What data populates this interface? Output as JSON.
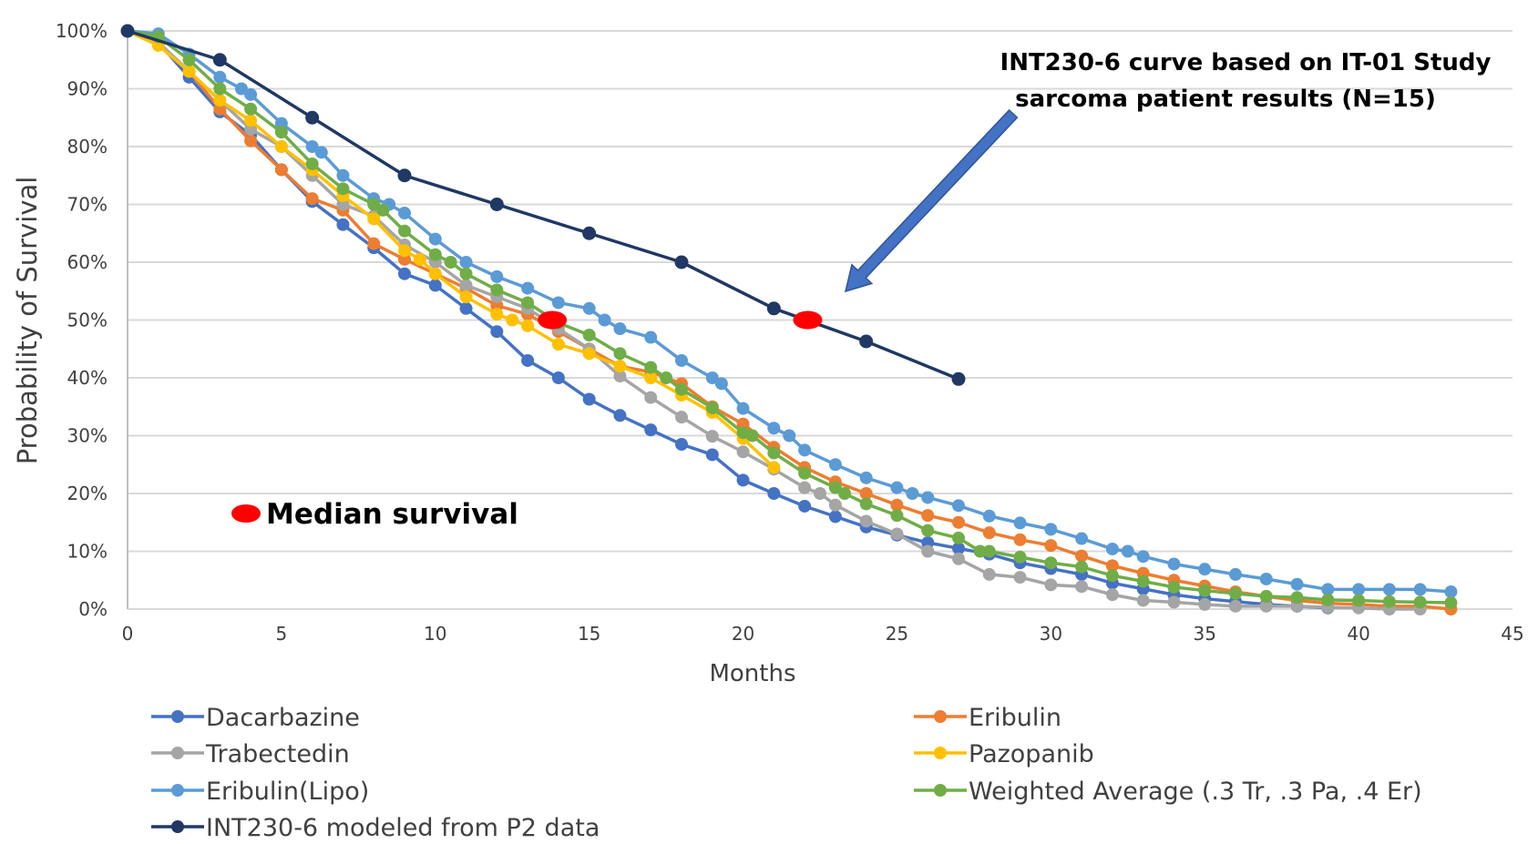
{
  "chart_data": {
    "type": "line",
    "title": "",
    "xlabel": "Months",
    "ylabel": "Probability of Survival",
    "xlim": [
      0,
      45
    ],
    "ylim": [
      0,
      100
    ],
    "x_ticks": [
      0,
      5,
      10,
      15,
      20,
      25,
      30,
      35,
      40,
      45
    ],
    "y_ticks": [
      "0%",
      "10%",
      "20%",
      "30%",
      "40%",
      "50%",
      "60%",
      "70%",
      "80%",
      "90%",
      "100%"
    ],
    "grid": "horizontal",
    "legend_placement": "bottom",
    "series": [
      {
        "name": "Dacarbazine",
        "color": "#4472C4",
        "points": [
          [
            0,
            100
          ],
          [
            1,
            98
          ],
          [
            2,
            92
          ],
          [
            3,
            86
          ],
          [
            4,
            82
          ],
          [
            5,
            76
          ],
          [
            6,
            70.5
          ],
          [
            7,
            66.5
          ],
          [
            8,
            62.5
          ],
          [
            9,
            58
          ],
          [
            10,
            56
          ],
          [
            11,
            52
          ],
          [
            12,
            48
          ],
          [
            13,
            43
          ],
          [
            14,
            40
          ],
          [
            15,
            36.3
          ],
          [
            16,
            33.5
          ],
          [
            17,
            31
          ],
          [
            18,
            28.5
          ],
          [
            19,
            26.7
          ],
          [
            20,
            22.3
          ],
          [
            21,
            20
          ],
          [
            22,
            17.8
          ],
          [
            23,
            16
          ],
          [
            24,
            14.2
          ],
          [
            25,
            12.8
          ],
          [
            26,
            11.5
          ],
          [
            27,
            10.5
          ],
          [
            28,
            9.5
          ],
          [
            29,
            8
          ],
          [
            30,
            7
          ],
          [
            31,
            6
          ],
          [
            32,
            4.5
          ],
          [
            33,
            3.5
          ],
          [
            34,
            2.5
          ],
          [
            35,
            1.8
          ],
          [
            36,
            1.3
          ],
          [
            37,
            0.8
          ],
          [
            38,
            0.5
          ],
          [
            39,
            0.2
          ]
        ]
      },
      {
        "name": "Eribulin",
        "color": "#ED7D31",
        "points": [
          [
            0,
            100
          ],
          [
            1,
            98
          ],
          [
            2,
            93
          ],
          [
            3,
            86.5
          ],
          [
            4,
            81
          ],
          [
            5,
            76
          ],
          [
            6,
            71
          ],
          [
            7,
            69
          ],
          [
            8,
            63.2
          ],
          [
            9,
            60.5
          ],
          [
            10,
            58
          ],
          [
            11,
            55.5
          ],
          [
            12,
            52.5
          ],
          [
            13,
            51
          ],
          [
            14,
            48
          ],
          [
            15,
            45
          ],
          [
            16,
            42
          ],
          [
            17,
            41
          ],
          [
            18,
            39
          ],
          [
            19,
            35
          ],
          [
            20,
            32
          ],
          [
            21,
            28
          ],
          [
            22,
            24.5
          ],
          [
            23,
            22
          ],
          [
            24,
            20
          ],
          [
            25,
            18
          ],
          [
            26,
            16.2
          ],
          [
            27,
            15
          ],
          [
            28,
            13.2
          ],
          [
            29,
            12
          ],
          [
            30,
            11
          ],
          [
            31,
            9.2
          ],
          [
            32,
            7.5
          ],
          [
            33,
            6.2
          ],
          [
            34,
            5
          ],
          [
            35,
            4
          ],
          [
            36,
            3
          ],
          [
            37,
            2.2
          ],
          [
            38,
            1.5
          ],
          [
            39,
            1
          ],
          [
            40,
            0.8
          ],
          [
            41,
            0.5
          ],
          [
            42,
            0.5
          ],
          [
            43,
            0
          ]
        ]
      },
      {
        "name": "Trabectedin",
        "color": "#A5A5A5",
        "points": [
          [
            0,
            100
          ],
          [
            1,
            98
          ],
          [
            2,
            93
          ],
          [
            3,
            88
          ],
          [
            4,
            83
          ],
          [
            5,
            80
          ],
          [
            6,
            75
          ],
          [
            7,
            70
          ],
          [
            8,
            68
          ],
          [
            9,
            63
          ],
          [
            10,
            60
          ],
          [
            11,
            56
          ],
          [
            12,
            54
          ],
          [
            13,
            52
          ],
          [
            14,
            48.5
          ],
          [
            15,
            45
          ],
          [
            16,
            40.3
          ],
          [
            17,
            36.6
          ],
          [
            18,
            33.2
          ],
          [
            19,
            29.9
          ],
          [
            20,
            27.2
          ],
          [
            21,
            24.2
          ],
          [
            22,
            21
          ],
          [
            22.5,
            20
          ],
          [
            23,
            18
          ],
          [
            24,
            15.2
          ],
          [
            25,
            13
          ],
          [
            26,
            10
          ],
          [
            27,
            8.7
          ],
          [
            28,
            6
          ],
          [
            29,
            5.5
          ],
          [
            30,
            4.2
          ],
          [
            31,
            3.9
          ],
          [
            32,
            2.5
          ],
          [
            33,
            1.5
          ],
          [
            34,
            1.2
          ],
          [
            35,
            0.8
          ],
          [
            36,
            0.5
          ],
          [
            37,
            0.5
          ],
          [
            38,
            0.5
          ],
          [
            39,
            0.3
          ],
          [
            40,
            0.2
          ],
          [
            41,
            0
          ],
          [
            42,
            0
          ]
        ]
      },
      {
        "name": "Pazopanib",
        "color": "#FFC000",
        "points": [
          [
            0,
            100
          ],
          [
            1,
            97.5
          ],
          [
            2,
            93
          ],
          [
            3,
            88
          ],
          [
            4,
            84.5
          ],
          [
            5,
            80
          ],
          [
            6,
            76
          ],
          [
            7,
            71.5
          ],
          [
            8,
            67.5
          ],
          [
            9,
            62
          ],
          [
            9.5,
            60.5
          ],
          [
            10,
            58
          ],
          [
            11,
            54
          ],
          [
            12,
            51
          ],
          [
            12.5,
            50
          ],
          [
            13,
            49
          ],
          [
            14,
            45.8
          ],
          [
            15,
            44.2
          ],
          [
            16,
            42
          ],
          [
            17,
            40
          ],
          [
            18,
            37
          ],
          [
            19,
            34
          ],
          [
            20,
            29.5
          ],
          [
            21,
            24.5
          ]
        ]
      },
      {
        "name": "Eribulin(Lipo)",
        "color": "#5B9BD5",
        "points": [
          [
            0,
            100
          ],
          [
            1,
            99.5
          ],
          [
            2,
            96
          ],
          [
            3,
            92
          ],
          [
            3.7,
            90
          ],
          [
            4,
            89
          ],
          [
            5,
            84
          ],
          [
            6,
            80
          ],
          [
            6.3,
            79
          ],
          [
            7,
            75
          ],
          [
            8,
            71
          ],
          [
            8.5,
            70
          ],
          [
            9,
            68.5
          ],
          [
            10,
            64
          ],
          [
            11,
            60
          ],
          [
            12,
            57.5
          ],
          [
            13,
            55.5
          ],
          [
            14,
            53
          ],
          [
            15,
            52
          ],
          [
            15.5,
            50
          ],
          [
            16,
            48.5
          ],
          [
            17,
            47
          ],
          [
            18,
            43
          ],
          [
            19,
            40
          ],
          [
            19.3,
            39
          ],
          [
            20,
            34.7
          ],
          [
            21,
            31.3
          ],
          [
            21.5,
            30
          ],
          [
            22,
            27.5
          ],
          [
            23,
            25
          ],
          [
            24,
            22.7
          ],
          [
            25,
            21
          ],
          [
            25.5,
            20
          ],
          [
            26,
            19.3
          ],
          [
            27,
            17.9
          ],
          [
            28,
            16.1
          ],
          [
            29,
            14.9
          ],
          [
            30,
            13.8
          ],
          [
            31,
            12.2
          ],
          [
            32,
            10.4
          ],
          [
            32.5,
            10
          ],
          [
            33,
            9.1
          ],
          [
            34,
            7.8
          ],
          [
            35,
            6.9
          ],
          [
            36,
            6
          ],
          [
            37,
            5.2
          ],
          [
            38,
            4.3
          ],
          [
            39,
            3.4
          ],
          [
            40,
            3.4
          ],
          [
            41,
            3.4
          ],
          [
            42,
            3.4
          ],
          [
            43,
            3
          ]
        ]
      },
      {
        "name": "Weighted Average (.3 Tr, .3 Pa, .4 Er)",
        "color": "#70AD47",
        "points": [
          [
            0,
            100
          ],
          [
            1,
            99
          ],
          [
            2,
            95
          ],
          [
            3,
            90
          ],
          [
            4,
            86.5
          ],
          [
            5,
            82.5
          ],
          [
            6,
            77
          ],
          [
            7,
            72.7
          ],
          [
            8,
            70
          ],
          [
            8.3,
            69
          ],
          [
            9,
            65.4
          ],
          [
            10,
            61.3
          ],
          [
            10.5,
            60
          ],
          [
            11,
            58
          ],
          [
            12,
            55.2
          ],
          [
            13,
            53
          ],
          [
            14,
            49.5
          ],
          [
            15,
            47.4
          ],
          [
            16,
            44.2
          ],
          [
            17,
            41.8
          ],
          [
            17.5,
            40
          ],
          [
            18,
            38
          ],
          [
            19,
            34.8
          ],
          [
            20,
            30.5
          ],
          [
            20.3,
            30
          ],
          [
            21,
            27
          ],
          [
            22,
            23.5
          ],
          [
            23,
            21
          ],
          [
            23.3,
            20
          ],
          [
            24,
            18.2
          ],
          [
            25,
            16.2
          ],
          [
            26,
            13.6
          ],
          [
            27,
            12.3
          ],
          [
            27.7,
            10
          ],
          [
            28,
            10
          ],
          [
            29,
            9
          ],
          [
            30,
            8
          ],
          [
            31,
            7.3
          ],
          [
            32,
            5.8
          ],
          [
            33,
            4.8
          ],
          [
            34,
            3.8
          ],
          [
            35,
            3.2
          ],
          [
            36,
            2.7
          ],
          [
            37,
            2.2
          ],
          [
            38,
            2
          ],
          [
            39,
            1.6
          ],
          [
            40,
            1.5
          ],
          [
            41,
            1.3
          ],
          [
            42,
            1.2
          ],
          [
            43,
            1.1
          ]
        ]
      },
      {
        "name": "INT230-6 modeled from P2 data",
        "color": "#203864",
        "points": [
          [
            0,
            100
          ],
          [
            3,
            95
          ],
          [
            6,
            85
          ],
          [
            9,
            75
          ],
          [
            12,
            70
          ],
          [
            15,
            65
          ],
          [
            18,
            60
          ],
          [
            21,
            52
          ],
          [
            24,
            46.3
          ],
          [
            27,
            39.8
          ]
        ]
      }
    ],
    "median_points": [
      [
        13.8,
        50
      ],
      [
        22.1,
        50
      ]
    ],
    "median_color": "#FF0000",
    "annotations": {
      "median_label": "Median survival",
      "int_curve_line1": "INT230-6 curve based on IT-01 Study",
      "int_curve_line2": "sarcoma patient results (N=15)",
      "arrow_color": "#4472C4"
    }
  }
}
